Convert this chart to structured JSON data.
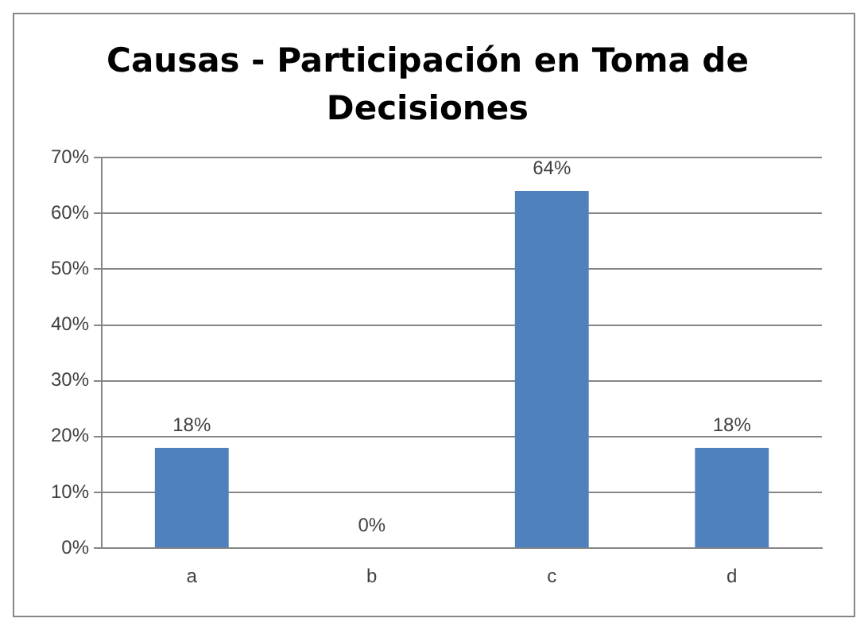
{
  "chart_data": {
    "type": "bar",
    "title": "Causas - Participación en Toma de Decisiones",
    "categories": [
      "a",
      "b",
      "c",
      "d"
    ],
    "values": [
      18,
      0,
      64,
      18
    ],
    "value_labels": [
      "18%",
      "0%",
      "64%",
      "18%"
    ],
    "color": "#4f81bd",
    "ylim": [
      0,
      70
    ],
    "yticks": [
      {
        "value": 0,
        "label": "0%"
      },
      {
        "value": 10,
        "label": "10%"
      },
      {
        "value": 20,
        "label": "20%"
      },
      {
        "value": 30,
        "label": "30%"
      },
      {
        "value": 40,
        "label": "40%"
      },
      {
        "value": 50,
        "label": "50%"
      },
      {
        "value": 60,
        "label": "60%"
      },
      {
        "value": 70,
        "label": "70%"
      }
    ],
    "grid": true
  }
}
